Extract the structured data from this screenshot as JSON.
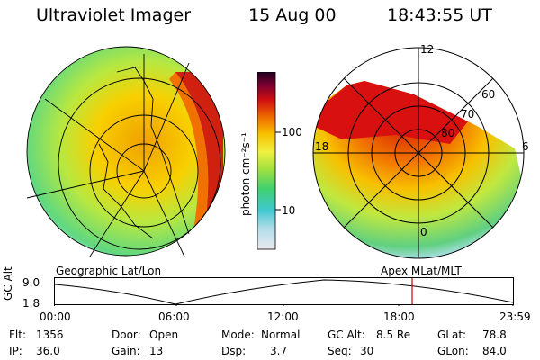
{
  "header": {
    "instrument": "Ultraviolet Imager",
    "date": "15 Aug 00",
    "time": "18:43:55 UT"
  },
  "left_panel": {
    "caption": "Geographic Lat/Lon"
  },
  "right_panel": {
    "caption": "Apex MLat/MLT",
    "mlt_labels": [
      "12",
      "18",
      "6",
      "0"
    ],
    "lat_labels": [
      "60",
      "70",
      "80"
    ]
  },
  "colorbar": {
    "unit_label": "photon cm⁻²s⁻¹",
    "ticks": [
      "100",
      "10"
    ],
    "colors": [
      "#e8e8f0",
      "#b8dce8",
      "#40c8d0",
      "#40d080",
      "#90e040",
      "#e0f040",
      "#f8c000",
      "#f89000",
      "#e83000",
      "#b80010",
      "#600040",
      "#200020"
    ]
  },
  "altitude_plot": {
    "ylabel": "GC Alt",
    "yticks": [
      "9.0",
      "1.8"
    ],
    "xticks": [
      "00:00",
      "06:00",
      "12:00",
      "18:00",
      "23:59"
    ],
    "current_time_marker_color": "#d00000"
  },
  "info": {
    "flt_label": "Flt:",
    "flt_value": "1356",
    "ip_label": "IP:",
    "ip_value": "36.0",
    "door_label": "Door:",
    "door_value": "Open",
    "gain_label": "Gain:",
    "gain_value": "13",
    "mode_label": "Mode:",
    "mode_value": "Normal",
    "dsp_label": "Dsp:",
    "dsp_value": "3.7",
    "gcalt_label": "GC Alt:",
    "gcalt_value": "8.5 Re",
    "seq_label": "Seq:",
    "seq_value": "30",
    "glat_label": "GLat:",
    "glat_value": "78.8",
    "glon_label": "GLon:",
    "glon_value": "84.0"
  }
}
